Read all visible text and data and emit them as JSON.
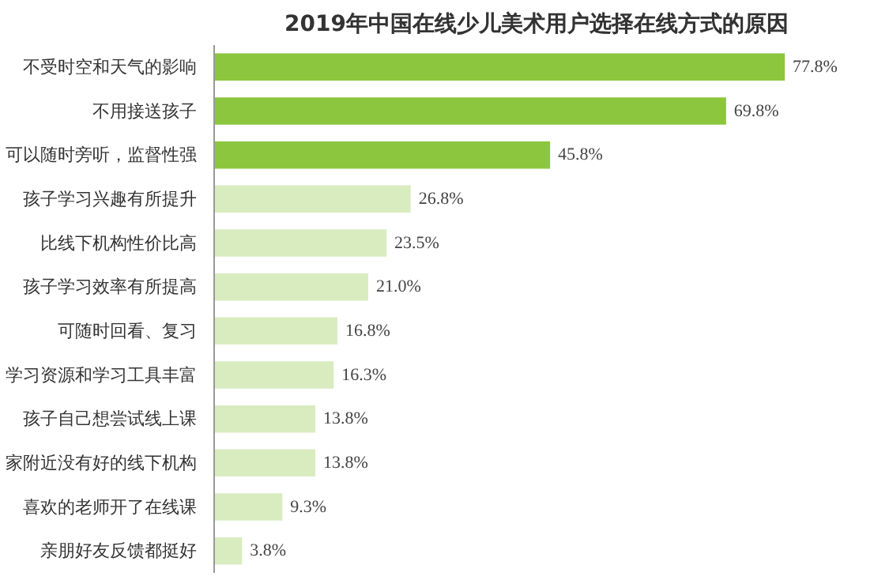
{
  "chart_data": {
    "type": "bar",
    "orientation": "horizontal",
    "title": "2019年中国在线少儿美术用户选择在线方式的原因",
    "categories": [
      "不受时空和天气的影响",
      "不用接送孩子",
      "可以随时旁听，监督性强",
      "孩子学习兴趣有所提升",
      "比线下机构性价比高",
      "孩子学习效率有所提高",
      "可随时回看、复习",
      "学习资源和学习工具丰富",
      "孩子自己想尝试线上课",
      "家附近没有好的线下机构",
      "喜欢的老师开了在线课",
      "亲朋好友反馈都挺好"
    ],
    "values": [
      77.8,
      69.8,
      45.8,
      26.8,
      23.5,
      21.0,
      16.8,
      16.3,
      13.8,
      13.8,
      9.3,
      3.8
    ],
    "value_labels": [
      "77.8%",
      "69.8%",
      "45.8%",
      "26.8%",
      "23.5%",
      "21.0%",
      "16.8%",
      "16.3%",
      "13.8%",
      "13.8%",
      "9.3%",
      "3.8%"
    ],
    "colors": [
      "#8cc63e",
      "#8cc63e",
      "#8cc63e",
      "#d9ecc0",
      "#d9ecc0",
      "#d9ecc0",
      "#d9ecc0",
      "#d9ecc0",
      "#d9ecc0",
      "#d9ecc0",
      "#d9ecc0",
      "#d9ecc0"
    ],
    "grid": false
  }
}
